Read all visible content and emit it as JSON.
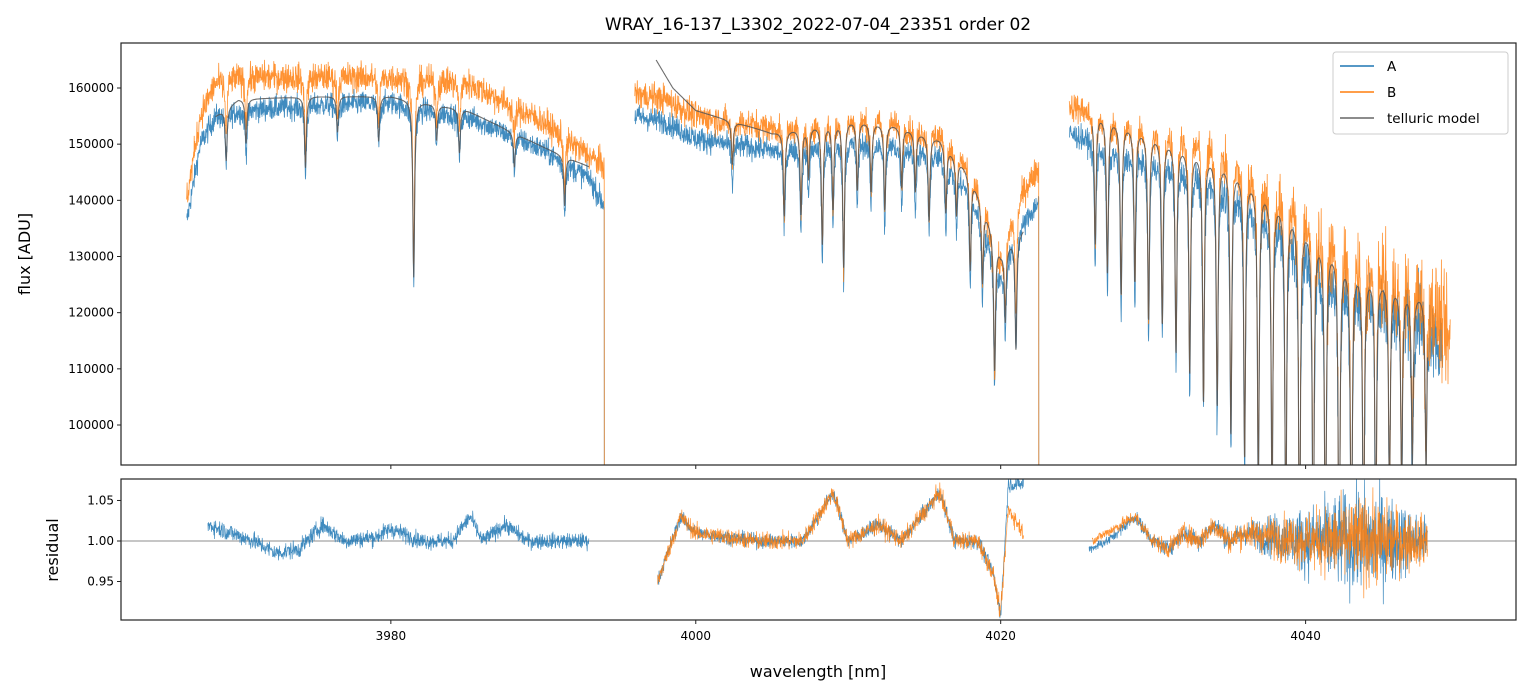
{
  "chart_data": [
    {
      "type": "line",
      "panel": "top",
      "title": "WRAY_16-137_L3302_2022-07-04_23351  order 02",
      "xlabel": "",
      "ylabel": "flux [ADU]",
      "xlim": [
        3962.3,
        4053.8
      ],
      "ylim": [
        92880,
        168010
      ],
      "xticks": [
        3980,
        4000,
        4020,
        4040
      ],
      "yticks": [
        100000,
        110000,
        120000,
        130000,
        140000,
        150000,
        160000
      ],
      "ytick_labels": [
        "100000",
        "110000",
        "120000",
        "130000",
        "140000",
        "150000",
        "160000"
      ],
      "grid": false,
      "legend_position": "top-right",
      "legend": [
        "A",
        "B",
        "telluric model"
      ],
      "absorption_lines": [
        [
          3969.2,
          0.06
        ],
        [
          3970.5,
          0.05
        ],
        [
          3974.4,
          0.08
        ],
        [
          3976.5,
          0.04
        ],
        [
          3979.2,
          0.05
        ],
        [
          3981.5,
          0.2
        ],
        [
          3983.0,
          0.04
        ],
        [
          3984.5,
          0.05
        ],
        [
          3988.1,
          0.04
        ],
        [
          3991.4,
          0.06
        ],
        [
          4002.4,
          0.05
        ],
        [
          4005.8,
          0.1
        ],
        [
          4006.9,
          0.1
        ],
        [
          4007.4,
          0.06
        ],
        [
          4008.3,
          0.14
        ],
        [
          4009.0,
          0.1
        ],
        [
          4009.7,
          0.17
        ],
        [
          4010.6,
          0.08
        ],
        [
          4011.5,
          0.08
        ],
        [
          4012.4,
          0.1
        ],
        [
          4013.5,
          0.07
        ],
        [
          4014.4,
          0.07
        ],
        [
          4015.3,
          0.1
        ],
        [
          4016.4,
          0.08
        ],
        [
          4017.1,
          0.07
        ],
        [
          4018.0,
          0.12
        ],
        [
          4018.8,
          0.1
        ],
        [
          4019.6,
          0.18
        ],
        [
          4020.3,
          0.1
        ],
        [
          4021.0,
          0.15
        ],
        [
          4026.2,
          0.15
        ],
        [
          4027.0,
          0.18
        ],
        [
          4027.9,
          0.2
        ],
        [
          4028.8,
          0.18
        ],
        [
          4029.7,
          0.22
        ],
        [
          4030.6,
          0.22
        ],
        [
          4031.5,
          0.25
        ],
        [
          4032.4,
          0.27
        ],
        [
          4033.3,
          0.3
        ],
        [
          4034.2,
          0.3
        ],
        [
          4035.1,
          0.33
        ],
        [
          4036.0,
          0.35
        ],
        [
          4036.9,
          0.38
        ],
        [
          4037.8,
          0.4
        ],
        [
          4038.7,
          0.42
        ],
        [
          4039.6,
          0.45
        ],
        [
          4040.5,
          0.45
        ],
        [
          4041.3,
          0.45
        ],
        [
          4042.2,
          0.45
        ],
        [
          4043.0,
          0.45
        ],
        [
          4043.8,
          0.4
        ],
        [
          4044.6,
          0.35
        ],
        [
          4045.5,
          0.3
        ],
        [
          4046.3,
          0.28
        ],
        [
          4047.0,
          0.25
        ],
        [
          4047.9,
          0.25
        ]
      ],
      "series": [
        {
          "name": "A",
          "color": "#1f77b4",
          "noise": 1800,
          "segments": [
            [
              [
                3966.6,
                136000
              ],
              [
                3967.5,
                150000
              ],
              [
                3968.5,
                155000
              ],
              [
                3970,
                156000
              ],
              [
                3975,
                157000
              ],
              [
                3980,
                157500
              ],
              [
                3985,
                155000
              ],
              [
                3990,
                149000
              ],
              [
                3993,
                144000
              ],
              [
                3994,
                139000
              ]
            ],
            [
              [
                3996.0,
                155000
              ],
              [
                3998,
                154000
              ],
              [
                4000,
                151000
              ],
              [
                4005,
                149000
              ],
              [
                4010,
                151000
              ],
              [
                4013,
                150000
              ],
              [
                4016,
                148000
              ],
              [
                4018,
                142000
              ],
              [
                4020,
                127000
              ],
              [
                4021,
                134000
              ],
              [
                4022.5,
                140000
              ]
            ],
            [
              [
                4024.5,
                152000
              ],
              [
                4027,
                150000
              ],
              [
                4030,
                148000
              ],
              [
                4033,
                146000
              ],
              [
                4035,
                143000
              ],
              [
                4038,
                138000
              ],
              [
                4040,
                132000
              ],
              [
                4043,
                126000
              ],
              [
                4046,
                123000
              ],
              [
                4048,
                121000
              ],
              [
                4049,
                112000
              ]
            ]
          ]
        },
        {
          "name": "B",
          "color": "#ff7f0e",
          "noise": 2200,
          "segments": [
            [
              [
                3966.6,
                140000
              ],
              [
                3967.5,
                155000
              ],
              [
                3968.5,
                161000
              ],
              [
                3970,
                162000
              ],
              [
                3975,
                162000
              ],
              [
                3980,
                162000
              ],
              [
                3985,
                161000
              ],
              [
                3990,
                154000
              ],
              [
                3993,
                148000
              ],
              [
                3994,
                146000
              ]
            ],
            [
              [
                3996.0,
                159000
              ],
              [
                3998,
                158000
              ],
              [
                4000,
                155000
              ],
              [
                4005,
                153000
              ],
              [
                4010,
                155000
              ],
              [
                4013,
                154000
              ],
              [
                4016,
                152000
              ],
              [
                4018,
                146000
              ],
              [
                4020,
                130000
              ],
              [
                4021,
                140000
              ],
              [
                4022.5,
                146000
              ]
            ],
            [
              [
                4024.5,
                157000
              ],
              [
                4027,
                155000
              ],
              [
                4030,
                153000
              ],
              [
                4033,
                152000
              ],
              [
                4035,
                149000
              ],
              [
                4038,
                143000
              ],
              [
                4040,
                139000
              ],
              [
                4043,
                131000
              ],
              [
                4046,
                127000
              ],
              [
                4048,
                124000
              ],
              [
                4049.5,
                114000
              ]
            ]
          ]
        },
        {
          "name": "telluric model",
          "color": "#555555",
          "noise": 0,
          "segments": [
            [
              [
                3968.5,
                155000
              ],
              [
                3970,
                158000
              ],
              [
                3975,
                158500
              ],
              [
                3980,
                158500
              ],
              [
                3985,
                156000
              ],
              [
                3990,
                149500
              ],
              [
                3993,
                146000
              ]
            ],
            [
              [
                3997.4,
                165000
              ],
              [
                3998.5,
                160000
              ],
              [
                4000,
                156000
              ],
              [
                4005,
                152000
              ],
              [
                4010,
                154500
              ],
              [
                4013,
                153500
              ],
              [
                4016,
                151000
              ],
              [
                4018,
                145000
              ],
              [
                4020,
                131000
              ],
              [
                4021.5,
                135000
              ]
            ],
            [
              [
                4026.0,
                156000
              ],
              [
                4029,
                153000
              ],
              [
                4032,
                150000
              ],
              [
                4035,
                147000
              ],
              [
                4038,
                141000
              ],
              [
                4040,
                136000
              ],
              [
                4043,
                129000
              ],
              [
                4046,
                125000
              ],
              [
                4048,
                123000
              ]
            ]
          ]
        }
      ]
    },
    {
      "type": "line",
      "panel": "bottom",
      "xlabel": "wavelength [nm]",
      "ylabel": "residual",
      "xlim": [
        3962.3,
        4053.8
      ],
      "ylim": [
        0.9025,
        1.0765
      ],
      "xticks": [
        3980,
        4000,
        4020,
        4040
      ],
      "xtick_labels": [
        "3980",
        "4000",
        "4020",
        "4040"
      ],
      "yticks": [
        0.95,
        1.0,
        1.05
      ],
      "ytick_labels": [
        "0.95",
        "1.00",
        "1.05"
      ],
      "reference_line": 1.0,
      "series": [
        {
          "name": "A",
          "color": "#1f77b4",
          "segments": [
            [
              [
                3968,
                1.02
              ],
              [
                3969.5,
                1.01
              ],
              [
                3971,
                1.0
              ],
              [
                3972.5,
                0.985
              ],
              [
                3974,
                0.99
              ],
              [
                3975.5,
                1.02
              ],
              [
                3977,
                1.0
              ],
              [
                3979,
                1.005
              ],
              [
                3980,
                1.015
              ],
              [
                3982,
                1.0
              ],
              [
                3984,
                1.0
              ],
              [
                3985.2,
                1.03
              ],
              [
                3986,
                1.0
              ],
              [
                3987.5,
                1.02
              ],
              [
                3989,
                1.0
              ],
              [
                3993,
                1.0
              ]
            ],
            [
              [
                3997.5,
                0.95
              ],
              [
                3999,
                1.03
              ],
              [
                4000,
                1.01
              ],
              [
                4004,
                1.0
              ],
              [
                4007,
                1.0
              ],
              [
                4009,
                1.06
              ],
              [
                4010,
                1.0
              ],
              [
                4012,
                1.02
              ],
              [
                4013.5,
                1.0
              ],
              [
                4016,
                1.06
              ],
              [
                4017,
                1.0
              ],
              [
                4018.5,
                1.0
              ],
              [
                4019.5,
                0.96
              ],
              [
                4020,
                0.91
              ],
              [
                4020.5,
                1.07
              ],
              [
                4021.5,
                1.07
              ]
            ],
            [
              [
                4025.8,
                0.99
              ],
              [
                4027,
                1.0
              ],
              [
                4028.8,
                1.03
              ],
              [
                4030,
                1.0
              ],
              [
                4031,
                0.99
              ],
              [
                4032,
                1.01
              ],
              [
                4033,
                1.0
              ],
              [
                4034,
                1.02
              ],
              [
                4035,
                1.0
              ],
              [
                4036,
                1.01
              ],
              [
                4040,
                1.0
              ],
              [
                4044,
                1.0
              ],
              [
                4048,
                1.0
              ]
            ]
          ],
          "noise": [
            [
              3968,
              0.008
            ],
            [
              3993,
              0.007
            ],
            [
              4000,
              0.006
            ],
            [
              4021,
              0.007
            ],
            [
              4026,
              0.004
            ],
            [
              4036,
              0.01
            ],
            [
              4040,
              0.03
            ],
            [
              4044,
              0.05
            ],
            [
              4048,
              0.02
            ]
          ]
        },
        {
          "name": "B",
          "color": "#ff7f0e",
          "segments": [
            [
              [
                3997.5,
                0.95
              ],
              [
                3999,
                1.03
              ],
              [
                4000,
                1.01
              ],
              [
                4004,
                1.0
              ],
              [
                4007,
                1.0
              ],
              [
                4009,
                1.06
              ],
              [
                4010,
                1.0
              ],
              [
                4012,
                1.02
              ],
              [
                4013.5,
                1.0
              ],
              [
                4016,
                1.06
              ],
              [
                4017,
                1.0
              ],
              [
                4018.5,
                1.0
              ],
              [
                4019.5,
                0.96
              ],
              [
                4020,
                0.91
              ],
              [
                4020.5,
                1.04
              ],
              [
                4021.5,
                1.01
              ]
            ],
            [
              [
                4026,
                1.0
              ],
              [
                4028.8,
                1.03
              ],
              [
                4030,
                1.0
              ],
              [
                4031,
                0.99
              ],
              [
                4032,
                1.01
              ],
              [
                4033,
                1.0
              ],
              [
                4034,
                1.02
              ],
              [
                4035,
                1.0
              ],
              [
                4036,
                1.01
              ],
              [
                4040,
                1.0
              ],
              [
                4044,
                1.0
              ],
              [
                4048,
                1.0
              ]
            ]
          ],
          "noise": [
            [
              3997.5,
              0.008
            ],
            [
              4021,
              0.008
            ],
            [
              4026,
              0.004
            ],
            [
              4036,
              0.012
            ],
            [
              4040,
              0.025
            ],
            [
              4044,
              0.04
            ],
            [
              4048,
              0.02
            ]
          ]
        }
      ]
    }
  ]
}
